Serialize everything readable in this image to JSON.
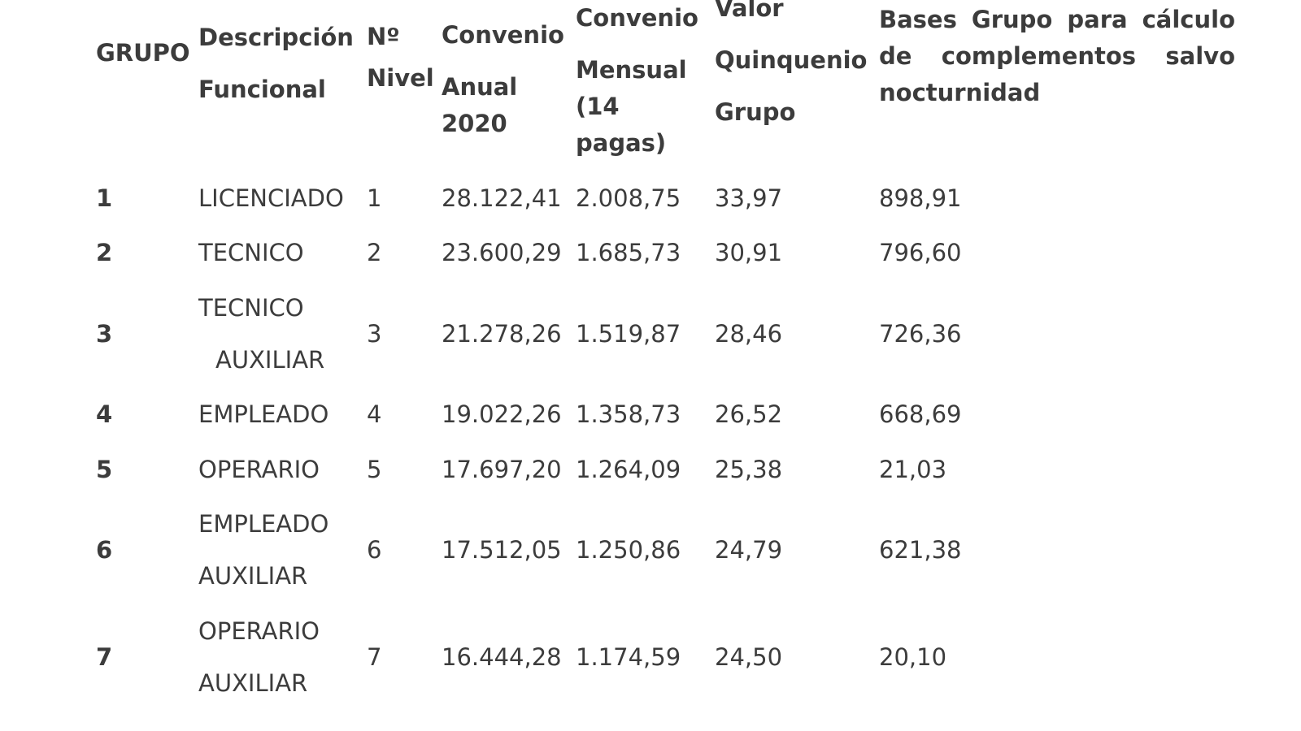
{
  "table": {
    "headers": {
      "grupo": "GRUPO",
      "descripcion": [
        "Descripción",
        "Funcional"
      ],
      "nivel": [
        "Nº",
        "Nivel"
      ],
      "anual": [
        "Convenio",
        "Anual",
        "2020"
      ],
      "mensual": [
        "Convenio",
        "Mensual",
        "(14",
        "pagas)"
      ],
      "quinquenio": [
        "Valor",
        "Quinquenio",
        "Grupo"
      ],
      "bases": "Bases Grupo para cálculo de complementos salvo nocturnidad"
    },
    "rows": [
      {
        "grupo": "1",
        "descripcion": [
          "LICENCIADO"
        ],
        "nivel": "1",
        "anual": "28.122,41",
        "mensual": "2.008,75",
        "quinquenio": "33,97",
        "bases": "898,91"
      },
      {
        "grupo": "2",
        "descripcion": [
          "TECNICO"
        ],
        "nivel": "2",
        "anual": "23.600,29",
        "mensual": "1.685,73",
        "quinquenio": "30,91",
        "bases": "796,60"
      },
      {
        "grupo": "3",
        "descripcion": [
          "TECNICO",
          "AUXILIAR"
        ],
        "nivel": "3",
        "anual": "21.278,26",
        "mensual": "1.519,87",
        "quinquenio": "28,46",
        "bases": "726,36"
      },
      {
        "grupo": "4",
        "descripcion": [
          "EMPLEADO"
        ],
        "nivel": "4",
        "anual": "19.022,26",
        "mensual": "1.358,73",
        "quinquenio": "26,52",
        "bases": "668,69"
      },
      {
        "grupo": "5",
        "descripcion": [
          "OPERARIO"
        ],
        "nivel": "5",
        "anual": "17.697,20",
        "mensual": "1.264,09",
        "quinquenio": "25,38",
        "bases": "21,03"
      },
      {
        "grupo": "6",
        "descripcion": [
          "EMPLEADO",
          "AUXILIAR"
        ],
        "nivel": "6",
        "anual": "17.512,05",
        "mensual": "1.250,86",
        "quinquenio": "24,79",
        "bases": "621,38"
      },
      {
        "grupo": "7",
        "descripcion": [
          "OPERARIO",
          "AUXILIAR"
        ],
        "nivel": "7",
        "anual": "16.444,28",
        "mensual": "1.174,59",
        "quinquenio": "24,50",
        "bases": "20,10"
      }
    ]
  }
}
